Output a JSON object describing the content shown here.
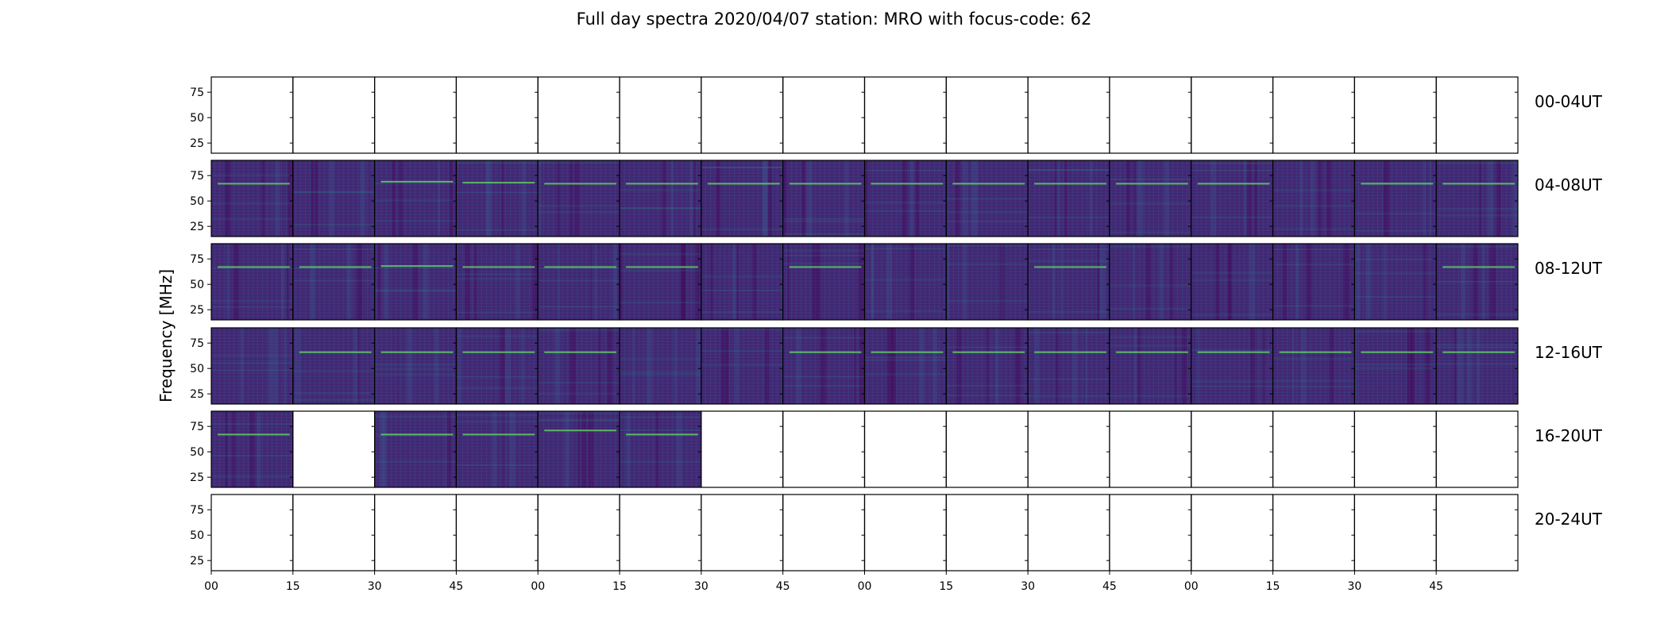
{
  "chart_data": {
    "type": "heatmap",
    "title": "Full day spectra 2020/04/07 station: MRO with focus-code: 62",
    "ylabel": "Frequency [MHz]",
    "xlabel": "",
    "ylim": [
      15,
      90
    ],
    "yticks": [
      25,
      50,
      75
    ],
    "xticks": [
      "00",
      "15",
      "30",
      "45",
      "00",
      "15",
      "30",
      "45",
      "00",
      "15",
      "30",
      "45",
      "00",
      "15",
      "30",
      "45"
    ],
    "colormap": [
      "#440154",
      "#3b528b",
      "#21918c",
      "#5ec962",
      "#fde725"
    ],
    "panels_per_row": 16,
    "rows": [
      {
        "label": "00-04UT",
        "filled": [
          0,
          0,
          0,
          0,
          0,
          0,
          0,
          0,
          0,
          0,
          0,
          0,
          0,
          0,
          0,
          0
        ],
        "line_mhz": [
          0,
          0,
          0,
          0,
          0,
          0,
          0,
          0,
          0,
          0,
          0,
          0,
          0,
          0,
          0,
          0
        ]
      },
      {
        "label": "04-08UT",
        "filled": [
          1,
          1,
          1,
          1,
          1,
          1,
          1,
          1,
          1,
          1,
          1,
          1,
          1,
          1,
          1,
          1
        ],
        "line_mhz": [
          67,
          0,
          69,
          68,
          67,
          67,
          67,
          67,
          67,
          67,
          67,
          67,
          67,
          0,
          67,
          67
        ]
      },
      {
        "label": "08-12UT",
        "filled": [
          1,
          1,
          1,
          1,
          1,
          1,
          1,
          1,
          1,
          1,
          1,
          1,
          1,
          1,
          1,
          1
        ],
        "line_mhz": [
          67,
          67,
          68,
          67,
          67,
          67,
          0,
          67,
          0,
          0,
          67,
          0,
          0,
          0,
          0,
          67
        ]
      },
      {
        "label": "12-16UT",
        "filled": [
          1,
          1,
          1,
          1,
          1,
          1,
          1,
          1,
          1,
          1,
          1,
          1,
          1,
          1,
          1,
          1
        ],
        "line_mhz": [
          0,
          66,
          66,
          66,
          66,
          0,
          0,
          66,
          66,
          66,
          66,
          66,
          66,
          66,
          66,
          66
        ]
      },
      {
        "label": "16-20UT",
        "filled": [
          1,
          0,
          1,
          1,
          1,
          1,
          0,
          0,
          0,
          0,
          0,
          0,
          0,
          0,
          0,
          0
        ],
        "line_mhz": [
          67,
          0,
          67,
          67,
          71,
          67,
          0,
          0,
          0,
          0,
          0,
          0,
          0,
          0,
          0,
          0
        ]
      },
      {
        "label": "20-24UT",
        "filled": [
          0,
          0,
          0,
          0,
          0,
          0,
          0,
          0,
          0,
          0,
          0,
          0,
          0,
          0,
          0,
          0
        ],
        "line_mhz": [
          0,
          0,
          0,
          0,
          0,
          0,
          0,
          0,
          0,
          0,
          0,
          0,
          0,
          0,
          0,
          0
        ]
      }
    ]
  }
}
